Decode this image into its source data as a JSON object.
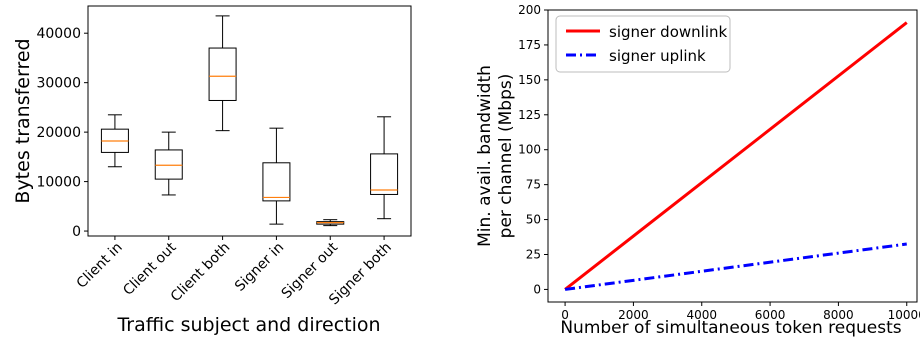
{
  "chart_data": [
    {
      "type": "box",
      "xlabel": "Traffic subject and direction",
      "ylabel": "Bytes transferred",
      "ylim": [
        -1000,
        45500
      ],
      "yticks": [
        0,
        10000,
        20000,
        30000,
        40000
      ],
      "categories": [
        "Client in",
        "Client out",
        "Client both",
        "Signer in",
        "Signer out",
        "Signer both"
      ],
      "boxes": [
        {
          "whisker_low": 13000,
          "q1": 15900,
          "median": 18200,
          "q3": 20600,
          "whisker_high": 23500
        },
        {
          "whisker_low": 7300,
          "q1": 10500,
          "median": 13300,
          "q3": 16400,
          "whisker_high": 20000
        },
        {
          "whisker_low": 20300,
          "q1": 26400,
          "median": 31300,
          "q3": 37000,
          "whisker_high": 43500
        },
        {
          "whisker_low": 1400,
          "q1": 6100,
          "median": 6800,
          "q3": 13800,
          "whisker_high": 20800
        },
        {
          "whisker_low": 1100,
          "q1": 1400,
          "median": 1700,
          "q3": 1900,
          "whisker_high": 2300
        },
        {
          "whisker_low": 2500,
          "q1": 7400,
          "median": 8300,
          "q3": 15600,
          "whisker_high": 23100
        }
      ],
      "box_color": "#000000",
      "median_color": "#ff7f0e"
    },
    {
      "type": "line",
      "xlabel": "Number of simultaneous token requests",
      "ylabel_lines": [
        "Min. avail. bandwidth",
        "per channel (Mbps)"
      ],
      "xlim": [
        -500,
        10300
      ],
      "ylim": [
        -9,
        200
      ],
      "xticks": [
        0,
        2000,
        4000,
        6000,
        8000,
        10000
      ],
      "yticks": [
        0,
        25,
        50,
        75,
        100,
        125,
        150,
        175,
        200
      ],
      "legend_position": "top-left",
      "series": [
        {
          "name": "signer downlink",
          "x": [
            0,
            10000
          ],
          "y": [
            0,
            191
          ],
          "color": "#ff0000",
          "style": "solid"
        },
        {
          "name": "signer uplink",
          "x": [
            0,
            10000
          ],
          "y": [
            0,
            32.5
          ],
          "color": "#0000ff",
          "style": "dashdot"
        }
      ]
    }
  ]
}
